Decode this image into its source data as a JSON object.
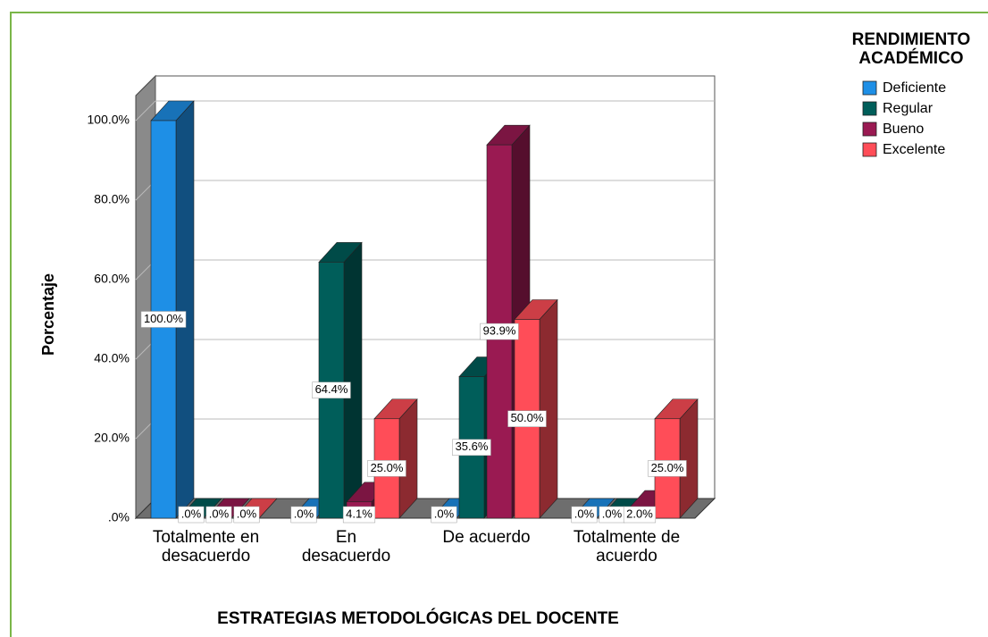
{
  "chart_data": {
    "type": "bar3d",
    "x_label": "ESTRATEGIAS METODOLÓGICAS DEL DOCENTE",
    "y_label": "Porcentaje",
    "legend_title": "RENDIMIENTO ACADÉMICO",
    "legend_position": "right",
    "grid": true,
    "categories": [
      "Totalmente en desacuerdo",
      "En desacuerdo",
      "De acuerdo",
      "Totalmente de acuerdo"
    ],
    "series": [
      {
        "name": "Deficiente",
        "color": "#1e8fe6",
        "values": [
          100,
          0,
          0,
          0
        ],
        "value_labels": [
          "100.0%",
          ".0%",
          ".0%",
          ".0%"
        ]
      },
      {
        "name": "Regular",
        "color": "#005e5a",
        "values": [
          0,
          64.4,
          35.6,
          0
        ],
        "value_labels": [
          ".0%",
          "64.4%",
          "35.6%",
          ".0%"
        ]
      },
      {
        "name": "Bueno",
        "color": "#9a1a52",
        "values": [
          0,
          4.1,
          93.9,
          2.0
        ],
        "value_labels": [
          ".0%",
          "4.1%",
          "93.9%",
          "2.0%"
        ]
      },
      {
        "name": "Excelente",
        "color": "#ff4d58",
        "values": [
          0,
          25,
          50,
          25
        ],
        "value_labels": [
          ".0%",
          "25.0%",
          "50.0%",
          "25.0%"
        ]
      }
    ],
    "ylim": [
      0,
      105
    ],
    "yticks": [
      {
        "value": 0,
        "label": ".0%"
      },
      {
        "value": 20,
        "label": "20.0%"
      },
      {
        "value": 40,
        "label": "40.0%"
      },
      {
        "value": 60,
        "label": "60.0%"
      },
      {
        "value": 80,
        "label": "80.0%"
      },
      {
        "value": 100,
        "label": "100.0%"
      }
    ]
  }
}
